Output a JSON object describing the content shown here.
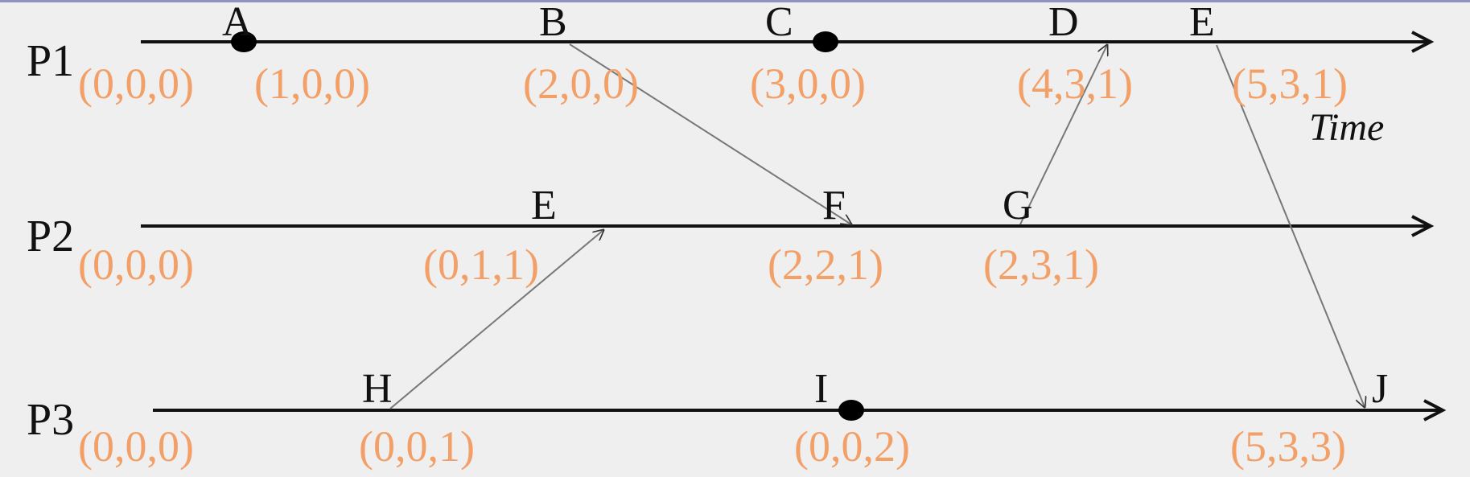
{
  "colors": {
    "background": "#efefef",
    "timeline": "#111111",
    "message": "#777777",
    "vector_clock": "#f2a068",
    "label": "#111111"
  },
  "time_label": "Time",
  "processes": [
    {
      "name": "P1",
      "initial": "(0,0,0)",
      "events": [
        {
          "label": "A",
          "clock": "(1,0,0)",
          "dot": true
        },
        {
          "label": "B",
          "clock": "(2,0,0)",
          "dot": false
        },
        {
          "label": "C",
          "clock": "(3,0,0)",
          "dot": true
        },
        {
          "label": "D",
          "clock": "(4,3,1)",
          "dot": false
        },
        {
          "label": "E",
          "clock": "(5,3,1)",
          "dot": false
        }
      ]
    },
    {
      "name": "P2",
      "initial": "(0,0,0)",
      "events": [
        {
          "label": "E",
          "clock": "(0,1,1)",
          "dot": false
        },
        {
          "label": "F",
          "clock": "(2,2,1)",
          "dot": false
        },
        {
          "label": "G",
          "clock": "(2,3,1)",
          "dot": false
        }
      ]
    },
    {
      "name": "P3",
      "initial": "(0,0,0)",
      "events": [
        {
          "label": "H",
          "clock": "(0,0,1)",
          "dot": false
        },
        {
          "label": "I",
          "clock": "(0,0,2)",
          "dot": true
        },
        {
          "label": "J",
          "clock": "(5,3,3)",
          "dot": false
        }
      ]
    }
  ],
  "messages": [
    {
      "from": "P1.B",
      "to": "P2.F"
    },
    {
      "from": "P2.G",
      "to": "P1.D"
    },
    {
      "from": "P3.H",
      "to": "P2.E"
    },
    {
      "from": "P1.E",
      "to": "P3.J"
    }
  ]
}
